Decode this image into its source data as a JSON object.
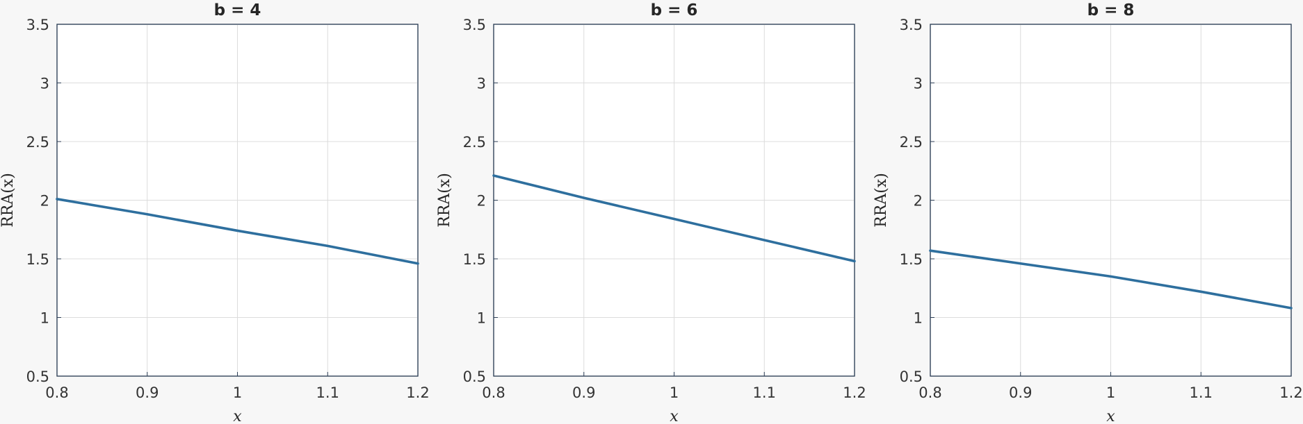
{
  "chart_data": [
    {
      "type": "line",
      "title": "b = 4",
      "xlabel": "x",
      "ylabel": "RRA(x)",
      "xlim": [
        0.8,
        1.2
      ],
      "ylim": [
        0.5,
        3.5
      ],
      "xticks": [
        "0.8",
        "0.9",
        "1",
        "1.1",
        "1.2"
      ],
      "yticks": [
        "0.5",
        "1",
        "1.5",
        "2",
        "2.5",
        "3",
        "3.5"
      ],
      "grid": true,
      "series": [
        {
          "color": "#2e6f9e",
          "x": [
            0.8,
            0.9,
            1.0,
            1.1,
            1.2
          ],
          "y": [
            2.01,
            1.88,
            1.74,
            1.61,
            1.46
          ]
        }
      ]
    },
    {
      "type": "line",
      "title": "b = 6",
      "xlabel": "x",
      "ylabel": "RRA(x)",
      "xlim": [
        0.8,
        1.2
      ],
      "ylim": [
        0.5,
        3.5
      ],
      "xticks": [
        "0.8",
        "0.9",
        "1",
        "1.1",
        "1.2"
      ],
      "yticks": [
        "0.5",
        "1",
        "1.5",
        "2",
        "2.5",
        "3",
        "3.5"
      ],
      "grid": true,
      "series": [
        {
          "color": "#2e6f9e",
          "x": [
            0.8,
            0.9,
            1.0,
            1.1,
            1.2
          ],
          "y": [
            2.21,
            2.02,
            1.84,
            1.66,
            1.48
          ]
        }
      ]
    },
    {
      "type": "line",
      "title": "b = 8",
      "xlabel": "x",
      "ylabel": "RRA(x)",
      "xlim": [
        0.8,
        1.2
      ],
      "ylim": [
        0.5,
        3.5
      ],
      "xticks": [
        "0.8",
        "0.9",
        "1",
        "1.1",
        "1.2"
      ],
      "yticks": [
        "0.5",
        "1",
        "1.5",
        "2",
        "2.5",
        "3",
        "3.5"
      ],
      "grid": true,
      "series": [
        {
          "color": "#2e6f9e",
          "x": [
            0.8,
            0.9,
            1.0,
            1.1,
            1.2
          ],
          "y": [
            1.57,
            1.46,
            1.35,
            1.22,
            1.08
          ]
        }
      ]
    }
  ]
}
